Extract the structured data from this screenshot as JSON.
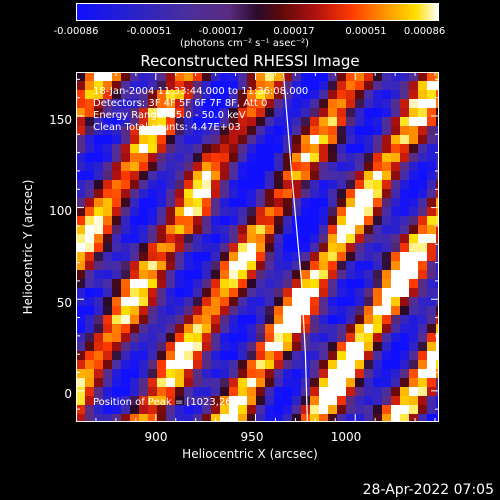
{
  "colorbar": {
    "ticks": [
      "-0.00086",
      "-0.00051",
      "-0.00017",
      "0.00017",
      "0.00051",
      "0.00086"
    ],
    "units": "(photons cm⁻² s⁻¹ asec⁻²)"
  },
  "title": "Reconstructed RHESSI Image",
  "annotations": {
    "time": "18-Jan-2004 11:33:44.000 to 11:36:08.000",
    "detectors": "Detectors: 3F 4F 5F 6F 7F 8F, Att 0",
    "energy": "Energy Range: 25.0 - 50.0 keV",
    "method": "Clean     Total counts: 4.47E+03",
    "peak": "Position of Peak = [1023,26]"
  },
  "footer": "28-Apr-2022 07:05",
  "chart_data": {
    "type": "heatmap",
    "title": "Reconstructed RHESSI Image",
    "xlabel": "Heliocentric X (arcsec)",
    "ylabel": "Heliocentric Y (arcsec)",
    "xlim": [
      860,
      1042
    ],
    "ylim": [
      -17,
      174
    ],
    "x_ticks": [
      "900",
      "950",
      "1000"
    ],
    "y_ticks": [
      "0",
      "50",
      "100",
      "150"
    ],
    "x_tick_values": [
      900,
      950,
      1000
    ],
    "y_tick_values": [
      0,
      50,
      100,
      150
    ],
    "colorbar_range": [
      -0.00086,
      0.00086
    ],
    "peak": [
      1023,
      26
    ],
    "limb_curve": {
      "x": [
        964,
        968,
        973,
        975,
        976
      ],
      "y": [
        174,
        120,
        60,
        20,
        -17
      ]
    },
    "colors": {
      "limb": "#ffffff",
      "min": "#1010ff",
      "max": "#ffffff"
    }
  }
}
